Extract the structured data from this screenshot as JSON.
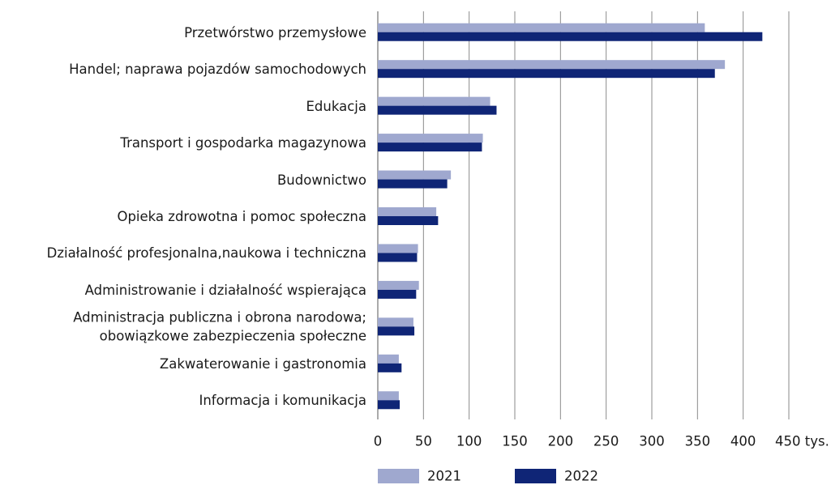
{
  "chart_data": {
    "type": "hbar",
    "categories": [
      "Przetwórstwo przemysłowe",
      "Handel; naprawa pojazdów samochodowych",
      "Edukacja",
      "Transport i gospodarka magazynowa",
      "Budownictwo",
      "Opieka zdrowotna i pomoc społeczna",
      "Działalność profesjonalna,naukowa i techniczna",
      "Administrowanie i działalność wspierająca",
      "Administracja publiczna i obrona narodowa;\nobowiązkowe zabezpieczenia społeczne",
      "Zakwaterowanie i gastronomia",
      "Informacja i komunikacja"
    ],
    "series": [
      {
        "name": "2021",
        "color": "#9fa8cf",
        "values": [
          358,
          380,
          123,
          115,
          80,
          64,
          44,
          45,
          39,
          23,
          23
        ]
      },
      {
        "name": "2022",
        "color": "#0f2576",
        "values": [
          421,
          369,
          130,
          114,
          76,
          66,
          43,
          42,
          40,
          26,
          24
        ]
      }
    ],
    "xlim": [
      0,
      450
    ],
    "xticks": [
      0,
      50,
      100,
      150,
      200,
      250,
      300,
      350,
      400,
      {
        "value": 450,
        "label": "450 tys."
      }
    ],
    "grid": true,
    "legend": "bottom"
  }
}
